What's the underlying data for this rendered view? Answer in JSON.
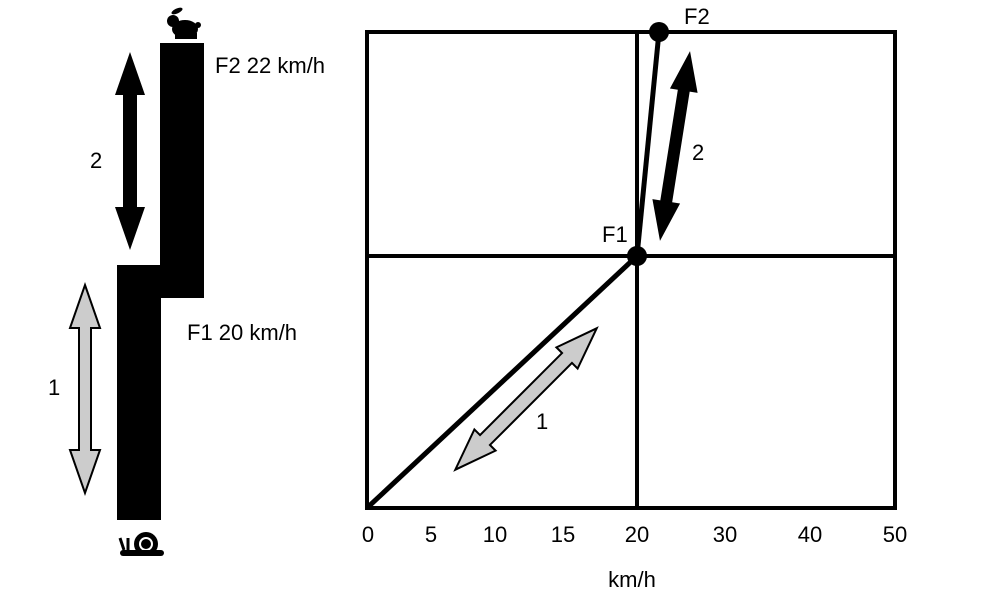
{
  "left_panel": {
    "f2_label": "F2 22 km/h",
    "f1_label": "F1 20 km/h",
    "arrow_2_label": "2",
    "arrow_1_label": "1",
    "top_icon": "rabbit-icon",
    "bottom_icon": "snail-icon"
  },
  "plot": {
    "point_f1_label": "F1",
    "point_f2_label": "F2",
    "arrow_2_label": "2",
    "arrow_1_label": "1",
    "x_ticks": [
      "0",
      "5",
      "10",
      "15",
      "20",
      "30",
      "40",
      "50"
    ],
    "x_label": "km/h"
  },
  "colors": {
    "black": "#000000",
    "gray_arrow": "#cccccc"
  }
}
